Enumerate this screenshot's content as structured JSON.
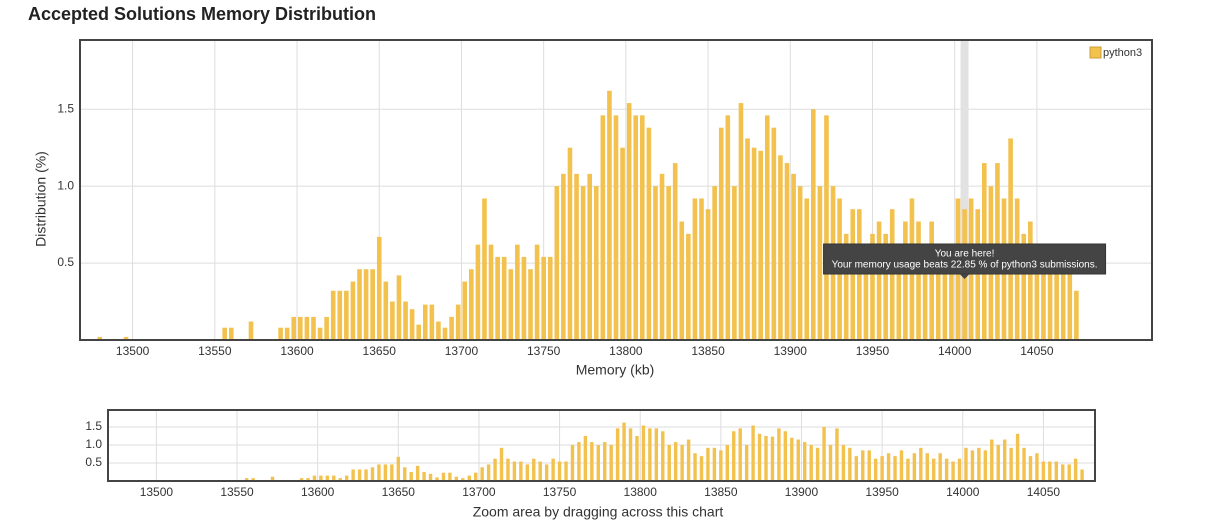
{
  "chart_data": [
    {
      "type": "bar",
      "title": "Accepted Solutions Memory Distribution",
      "xlabel": "Memory (kb)",
      "ylabel": "Distribution (%)",
      "x": [
        13480,
        13496,
        13556,
        13560,
        13572,
        13590,
        13594,
        13598,
        13602,
        13606,
        13610,
        13614,
        13618,
        13622,
        13626,
        13630,
        13634,
        13638,
        13642,
        13646,
        13650,
        13654,
        13658,
        13662,
        13666,
        13670,
        13674,
        13678,
        13682,
        13686,
        13690,
        13694,
        13698,
        13702,
        13706,
        13710,
        13714,
        13718,
        13722,
        13726,
        13730,
        13734,
        13738,
        13742,
        13746,
        13750,
        13754,
        13758,
        13762,
        13766,
        13770,
        13774,
        13778,
        13782,
        13786,
        13790,
        13794,
        13798,
        13802,
        13806,
        13810,
        13814,
        13818,
        13822,
        13826,
        13830,
        13834,
        13838,
        13842,
        13846,
        13850,
        13854,
        13858,
        13862,
        13866,
        13870,
        13874,
        13878,
        13882,
        13886,
        13890,
        13894,
        13898,
        13902,
        13906,
        13910,
        13914,
        13918,
        13922,
        13926,
        13930,
        13934,
        13938,
        13942,
        13946,
        13950,
        13954,
        13958,
        13962,
        13966,
        13970,
        13974,
        13978,
        13982,
        13986,
        13990,
        13994,
        13998,
        14002,
        14006,
        14010,
        14014,
        14018,
        14022,
        14026,
        14030,
        14034,
        14038,
        14042,
        14046,
        14050,
        14054,
        14058,
        14062,
        14066,
        14070,
        14074
      ],
      "series": [
        {
          "name": "python3",
          "color": "#f2c14e",
          "values": [
            0.02,
            0.02,
            0.08,
            0.08,
            0.12,
            0.08,
            0.08,
            0.15,
            0.15,
            0.15,
            0.15,
            0.08,
            0.15,
            0.32,
            0.32,
            0.32,
            0.38,
            0.46,
            0.46,
            0.46,
            0.67,
            0.38,
            0.25,
            0.42,
            0.25,
            0.2,
            0.1,
            0.23,
            0.23,
            0.12,
            0.08,
            0.15,
            0.23,
            0.38,
            0.46,
            0.62,
            0.92,
            0.62,
            0.54,
            0.54,
            0.46,
            0.62,
            0.54,
            0.46,
            0.62,
            0.54,
            0.54,
            1.0,
            1.08,
            1.25,
            1.08,
            1.0,
            1.08,
            1.0,
            1.46,
            1.62,
            1.46,
            1.25,
            1.54,
            1.46,
            1.46,
            1.38,
            1.0,
            1.08,
            1.0,
            1.15,
            0.77,
            0.69,
            0.92,
            0.92,
            0.85,
            1.0,
            1.38,
            1.46,
            1.0,
            1.54,
            1.31,
            1.25,
            1.23,
            1.46,
            1.38,
            1.2,
            1.15,
            1.08,
            1.0,
            0.92,
            1.5,
            1.0,
            1.46,
            1.0,
            0.92,
            0.69,
            0.85,
            0.85,
            0.62,
            0.69,
            0.77,
            0.69,
            0.85,
            0.62,
            0.77,
            0.92,
            0.77,
            0.62,
            0.77,
            0.62,
            0.54,
            0.62,
            0.92,
            0.85,
            0.92,
            0.85,
            1.15,
            1.0,
            1.15,
            0.92,
            1.31,
            0.92,
            0.69,
            0.77,
            0.54,
            0.54,
            0.54,
            0.46,
            0.46,
            0.62,
            0.32
          ]
        }
      ],
      "xlim": [
        13468,
        14120
      ],
      "ylim": [
        0,
        1.95
      ],
      "xticks": [
        13500,
        13550,
        13600,
        13650,
        13700,
        13750,
        13800,
        13850,
        13900,
        13950,
        14000,
        14050
      ],
      "yticks": [
        0.5,
        {
          "value": 1,
          "label": "1.0"
        },
        1.5
      ],
      "grid": true,
      "legend": "top-right",
      "highlight_x": 14006,
      "tooltip": {
        "title": "You are here!",
        "text": "Your memory usage beats 22.85 % of python3 submissions."
      }
    },
    {
      "type": "bar",
      "xlabel": "Zoom area by dragging across this chart",
      "xlim": [
        13470,
        14082
      ],
      "ylim": [
        0,
        1.97
      ],
      "xticks": [
        13500,
        13550,
        13600,
        13650,
        13700,
        13750,
        13800,
        13850,
        13900,
        13950,
        14000,
        14050
      ],
      "yticks": [
        0.5,
        {
          "value": 1,
          "label": "1.0"
        },
        1.5
      ],
      "grid": true
    }
  ]
}
